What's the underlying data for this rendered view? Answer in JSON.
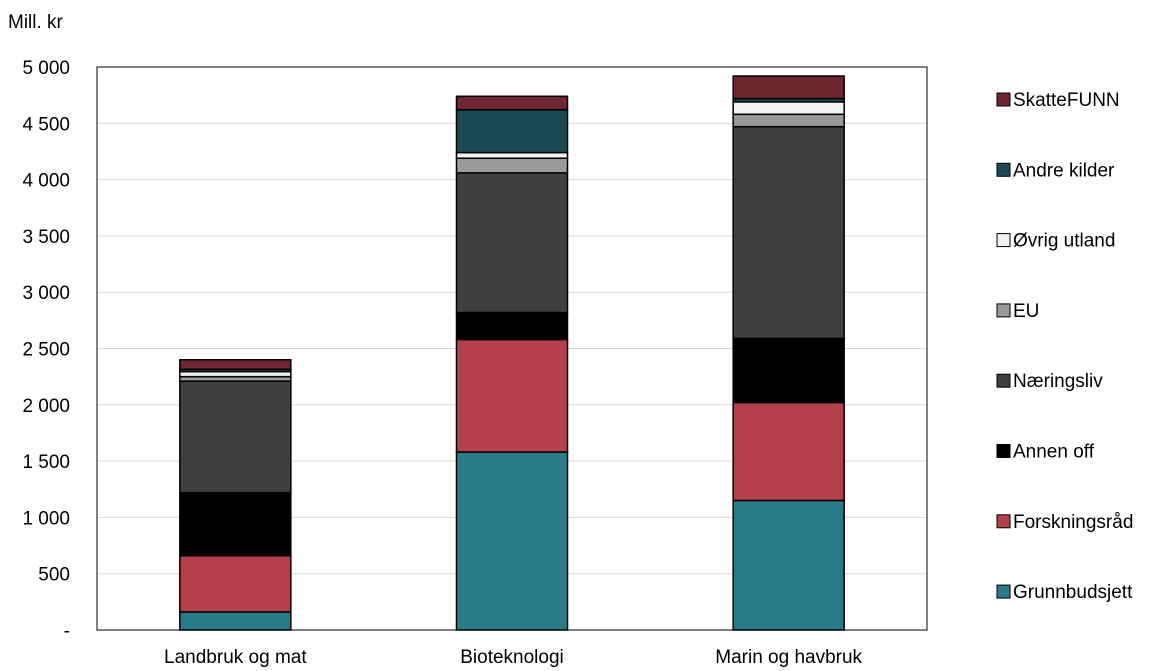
{
  "chart_data": {
    "type": "bar",
    "stacked": true,
    "title": "",
    "ylabel": "Mill. kr",
    "xlabel": "",
    "ylim": [
      0,
      5000
    ],
    "yticks": [
      0,
      500,
      1000,
      1500,
      2000,
      2500,
      3000,
      3500,
      4000,
      4500,
      5000
    ],
    "ytick_labels": [
      "-",
      "500",
      "1 000",
      "1 500",
      "2 000",
      "2 500",
      "3 000",
      "3 500",
      "4 000",
      "4 500",
      "5 000"
    ],
    "grid": true,
    "legend_position": "right",
    "categories": [
      "Landbruk og mat",
      "Bioteknologi",
      "Marin og havbruk"
    ],
    "series": [
      {
        "name": "Grunnbudsjett",
        "color": "#2a7b8a",
        "values": [
          160,
          1580,
          1150
        ]
      },
      {
        "name": "Forskningsråd",
        "color": "#b3404b",
        "values": [
          500,
          1000,
          870
        ]
      },
      {
        "name": "Annen off",
        "color": "#000000",
        "values": [
          560,
          240,
          570
        ]
      },
      {
        "name": "Næringsliv",
        "color": "#404040",
        "values": [
          990,
          1240,
          1880
        ]
      },
      {
        "name": "EU",
        "color": "#9a9a9a",
        "values": [
          40,
          130,
          110
        ]
      },
      {
        "name": "Øvrig utland",
        "color": "#f2f2f2",
        "values": [
          45,
          50,
          110
        ]
      },
      {
        "name": "Andre kilder",
        "color": "#1b4a55",
        "values": [
          20,
          380,
          30
        ]
      },
      {
        "name": "SkatteFUNN",
        "color": "#6e2630",
        "values": [
          85,
          120,
          200
        ]
      }
    ]
  }
}
